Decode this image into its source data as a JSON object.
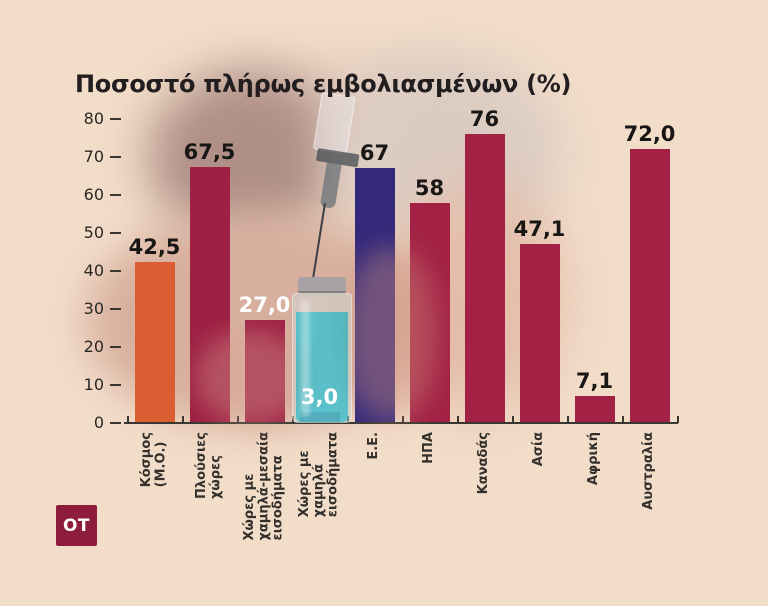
{
  "title": "Ποσοστό πλήρως εμβολιασμένων (%)",
  "logo": {
    "label": "OT",
    "bg": "#8e1c3c"
  },
  "colors": {
    "background": "#f2ddc9",
    "axis": "#3a3732",
    "value_dark": "#191715",
    "value_light": "#ffffff"
  },
  "chart_data": {
    "type": "bar",
    "title": "Ποσοστό πλήρως εμβολιασμένων (%)",
    "xlabel": "",
    "ylabel": "",
    "ylim": [
      0,
      80
    ],
    "yticks": [
      0,
      10,
      20,
      30,
      40,
      50,
      60,
      70,
      80
    ],
    "grid": false,
    "legend": "none",
    "categories": [
      [
        "Κόσμος",
        "(Μ.Ο.)"
      ],
      [
        "Πλούσιες",
        "χώρες"
      ],
      [
        "Χώρες με",
        "χαμηλά-μεσαία",
        "εισοδήματα"
      ],
      [
        "Χώρες με",
        "χαμηλά",
        "εισοδήματα"
      ],
      [
        "Ε.Ε."
      ],
      [
        "ΗΠΑ"
      ],
      [
        "Καναδάς"
      ],
      [
        "Ασία"
      ],
      [
        "Αφρική"
      ],
      [
        "Αυστραλία"
      ]
    ],
    "values": [
      42.5,
      67.5,
      27.0,
      3.0,
      67,
      58,
      76,
      47.1,
      7.1,
      72.0
    ],
    "value_labels": [
      "42,5",
      "67,5",
      "27,0",
      "3,0",
      "67",
      "58",
      "76",
      "47,1",
      "7,1",
      "72,0"
    ],
    "value_label_colors": [
      "dark",
      "dark",
      "light",
      "light",
      "dark",
      "dark",
      "dark",
      "dark",
      "dark",
      "dark"
    ],
    "bar_colors": [
      "#db5e33",
      "#9e2044",
      "#9e2044",
      "#9e2044",
      "#34297b",
      "#a32145",
      "#a32145",
      "#a32145",
      "#a32145",
      "#a32145"
    ]
  }
}
